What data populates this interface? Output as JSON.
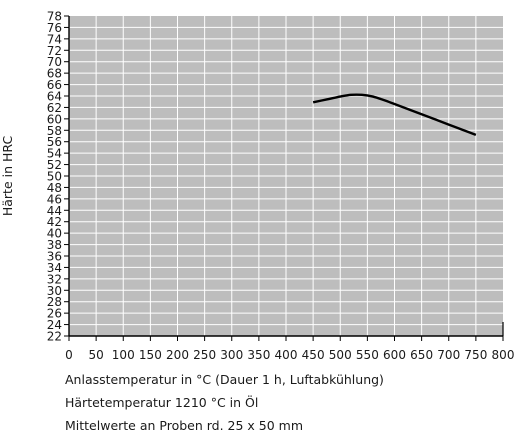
{
  "chart_data": {
    "type": "line",
    "xlabel": "Anlasstemperatur in °C (Dauer 1 h, Luftabkühlung)",
    "ylabel": "Härte in HRC",
    "notes": [
      "Härtetemperatur 1210 °C in Öl",
      "Mittelwerte an Proben rd. 25 x 50 mm"
    ],
    "xlim": [
      0,
      800
    ],
    "ylim": [
      22,
      78
    ],
    "x_ticks": [
      "0",
      "50",
      "100",
      "150",
      "200",
      "250",
      "300",
      "350",
      "400",
      "450",
      "500",
      "550",
      "600",
      "650",
      "700",
      "750",
      "800"
    ],
    "y_ticks": [
      "22",
      "24",
      "26",
      "28",
      "30",
      "32",
      "34",
      "36",
      "38",
      "40",
      "42",
      "44",
      "46",
      "48",
      "50",
      "52",
      "54",
      "56",
      "58",
      "60",
      "62",
      "64",
      "66",
      "68",
      "70",
      "72",
      "74",
      "76",
      "78"
    ],
    "grid": true,
    "series": [
      {
        "x": [
          450,
          475,
          500,
          520,
          540,
          560,
          580,
          600,
          625,
          650,
          675,
          700,
          725,
          750
        ],
        "values": [
          62.9,
          63.4,
          63.9,
          64.2,
          64.2,
          63.9,
          63.3,
          62.6,
          61.7,
          60.8,
          59.9,
          59.0,
          58.1,
          57.2
        ]
      }
    ],
    "colors": {
      "plot_bg": "#bdbdbd",
      "grid": "#ffffff",
      "line": "#000000",
      "axis": "#000000"
    }
  }
}
